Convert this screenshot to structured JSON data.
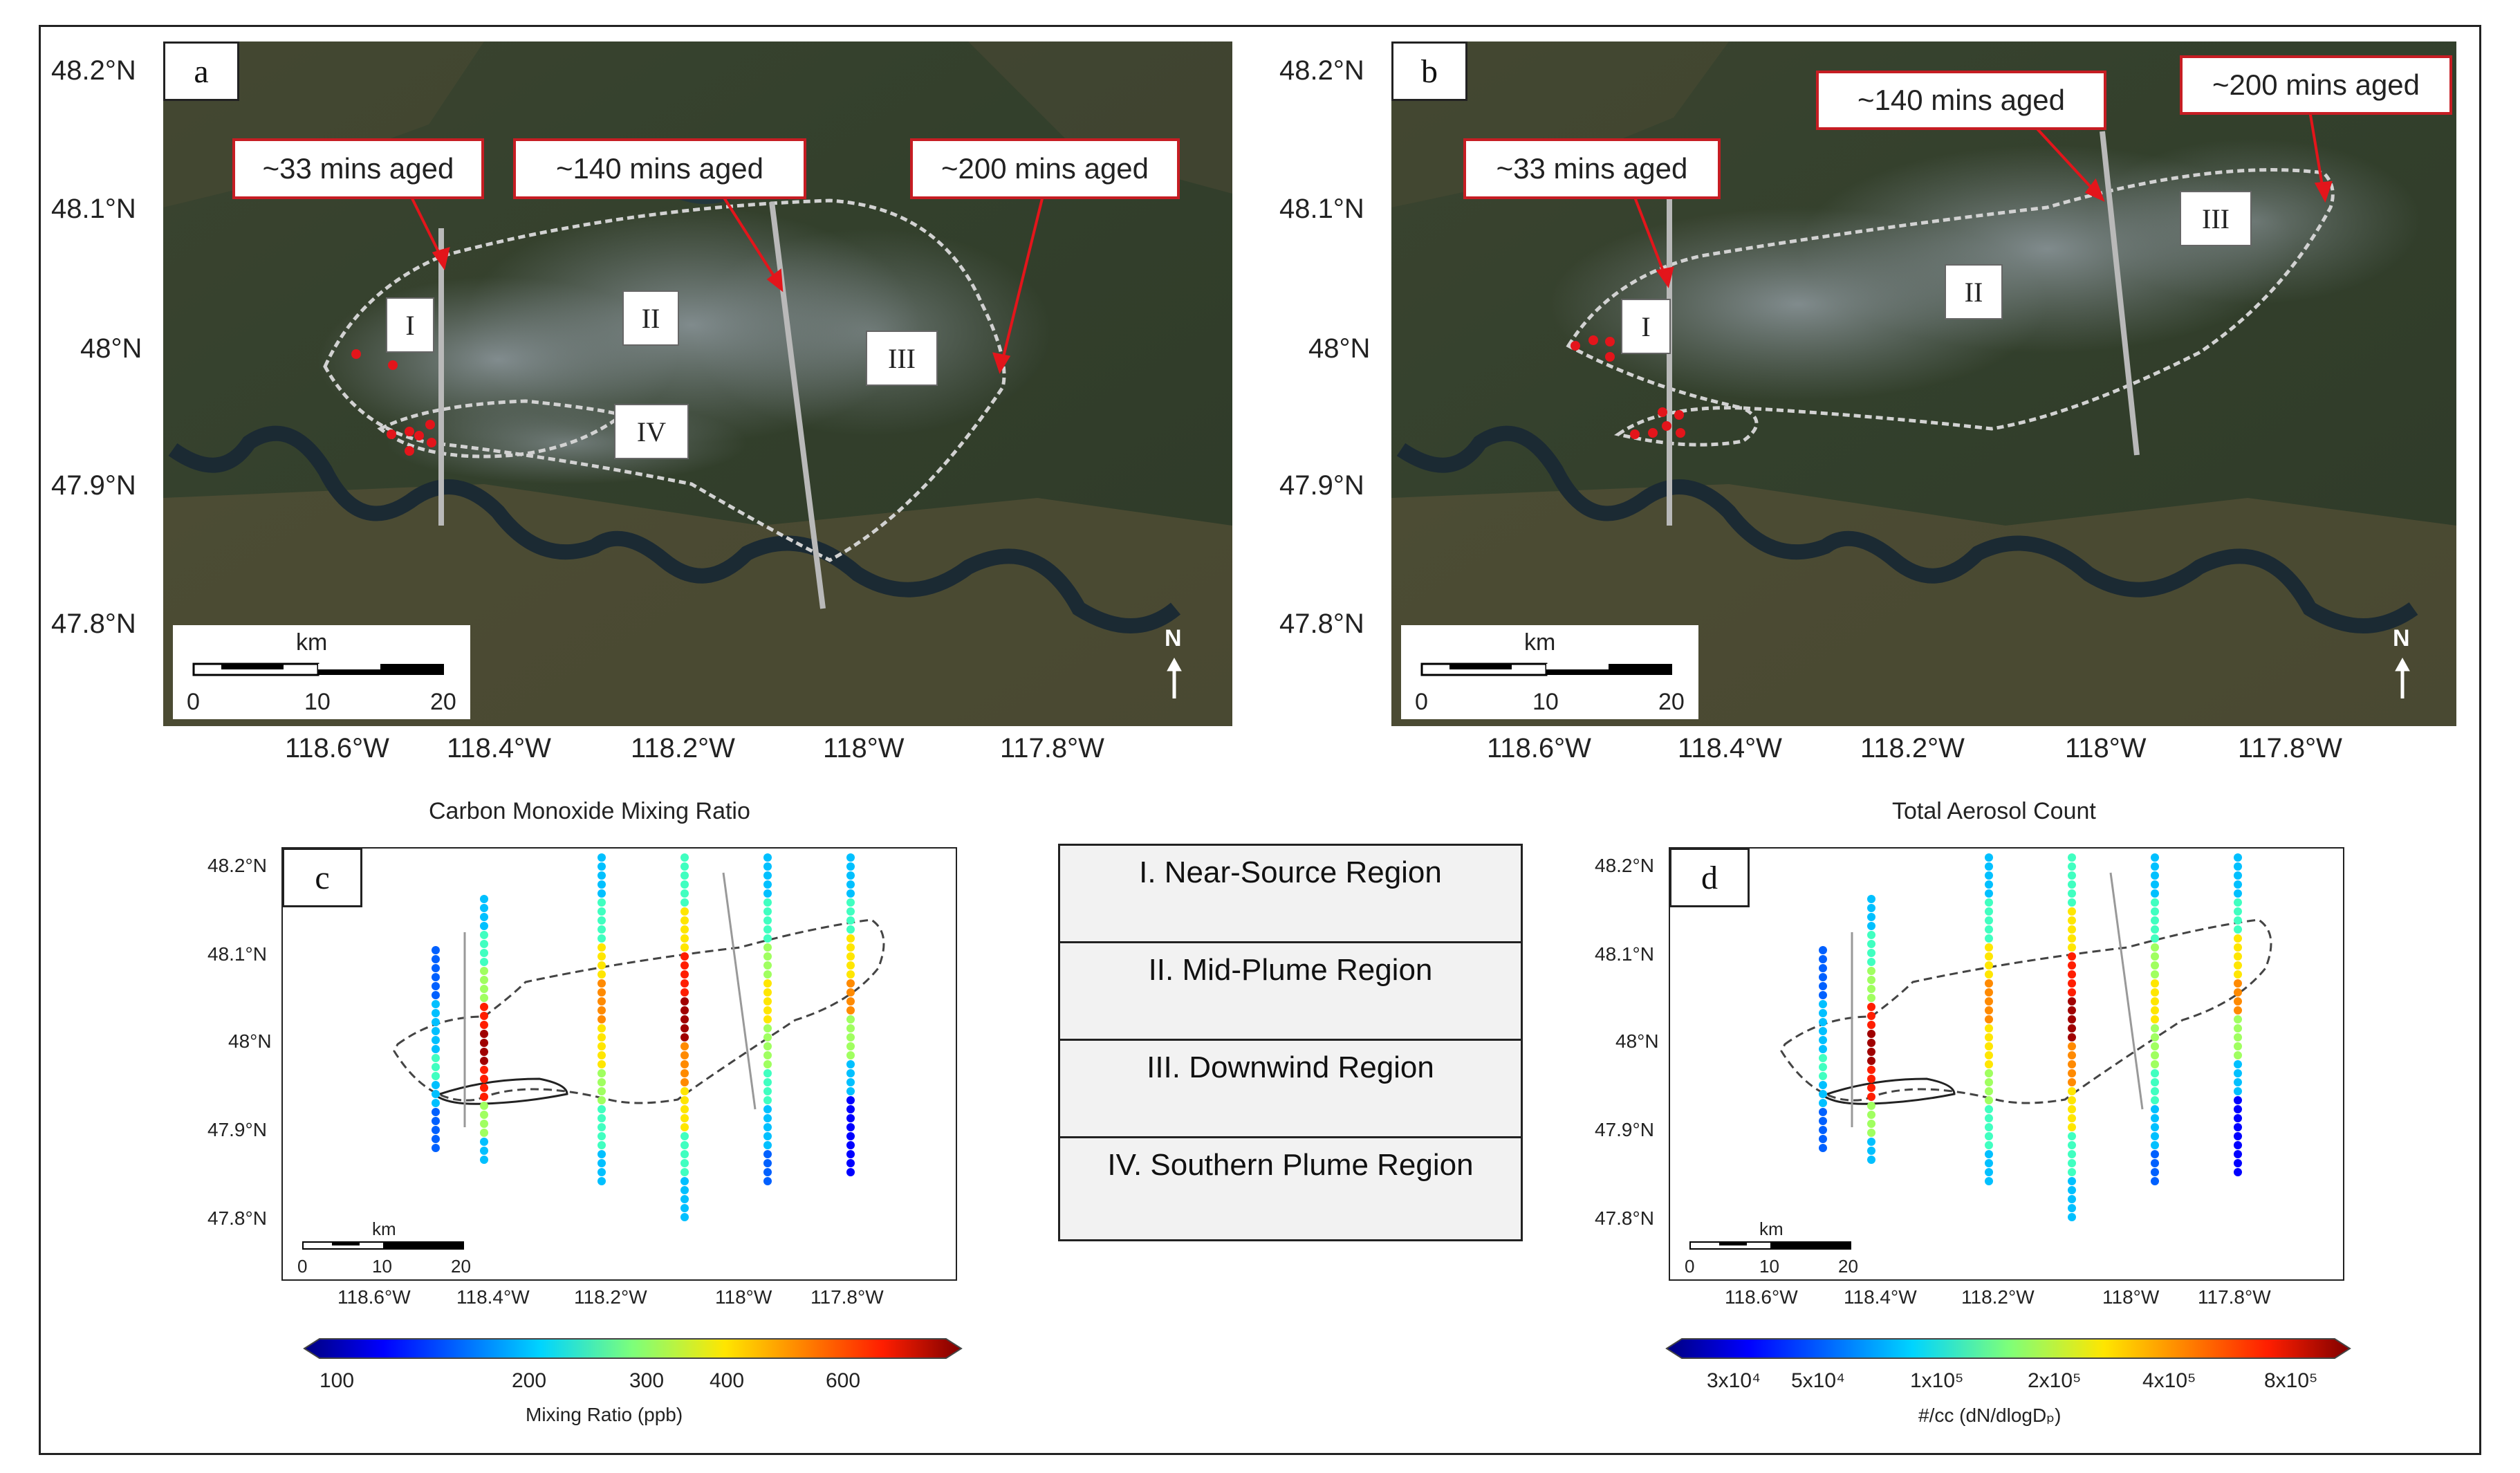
{
  "panels": {
    "a": {
      "letter": "a",
      "lat_labels": [
        "48.2°N",
        "48.1°N",
        "48°N",
        "47.9°N",
        "47.8°N"
      ],
      "lon_labels": [
        "118.6°W",
        "118.4°W",
        "118.2°W",
        "118°W",
        "117.8°W"
      ],
      "age_labels": [
        "~33 mins aged",
        "~140 mins aged",
        "~200 mins aged"
      ],
      "regions": [
        "I",
        "II",
        "III",
        "IV"
      ],
      "scale": {
        "unit": "km",
        "ticks": [
          "0",
          "10",
          "20"
        ]
      },
      "north": "N"
    },
    "b": {
      "letter": "b",
      "lat_labels": [
        "48.2°N",
        "48.1°N",
        "48°N",
        "47.9°N",
        "47.8°N"
      ],
      "lon_labels": [
        "118.6°W",
        "118.4°W",
        "118.2°W",
        "118°W",
        "117.8°W"
      ],
      "age_labels": [
        "~33 mins aged",
        "~140 mins aged",
        "~200 mins aged"
      ],
      "regions": [
        "I",
        "II",
        "III"
      ],
      "scale": {
        "unit": "km",
        "ticks": [
          "0",
          "10",
          "20"
        ]
      },
      "north": "N"
    },
    "c": {
      "letter": "c",
      "title": "Carbon Monoxide Mixing Ratio",
      "lat_labels": [
        "48.2°N",
        "48.1°N",
        "48°N",
        "47.9°N",
        "47.8°N"
      ],
      "lon_labels": [
        "118.6°W",
        "118.4°W",
        "118.2°W",
        "118°W",
        "117.8°W"
      ],
      "scale": {
        "unit": "km",
        "ticks": [
          "0",
          "10",
          "20"
        ]
      },
      "colorbar": {
        "ticks": [
          "100",
          "200",
          "300",
          "400",
          "600"
        ],
        "label": "Mixing Ratio (ppb)"
      }
    },
    "d": {
      "letter": "d",
      "title": "Total Aerosol Count",
      "lat_labels": [
        "48.2°N",
        "48.1°N",
        "48°N",
        "47.9°N",
        "47.8°N"
      ],
      "lon_labels": [
        "118.6°W",
        "118.4°W",
        "118.2°W",
        "118°W",
        "117.8°W"
      ],
      "scale": {
        "unit": "km",
        "ticks": [
          "0",
          "10",
          "20"
        ]
      },
      "colorbar": {
        "ticks": [
          "3x10⁴",
          "5x10⁴",
          "1x10⁵",
          "2x10⁵",
          "4x10⁵",
          "8x10⁵"
        ],
        "label": "#/cc (dN/dlogDₚ)"
      }
    }
  },
  "region_legend": [
    "I. Near-Source Region",
    "II. Mid-Plume Region",
    "III. Downwind  Region",
    "IV. Southern Plume Region"
  ],
  "colors": {
    "label_border": "#c61d23",
    "fire": "#e3151b",
    "transect": "#b9b9b9",
    "plume_outline": "#d2d2d2"
  }
}
